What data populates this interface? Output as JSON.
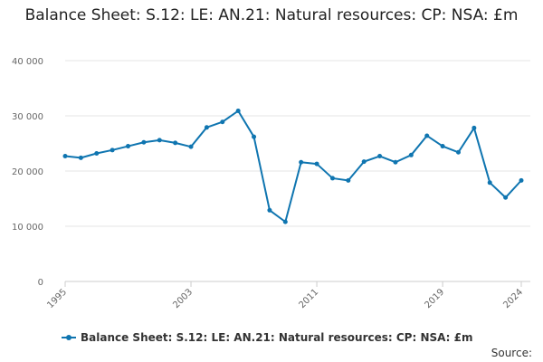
{
  "chart_data": {
    "type": "line",
    "title": "Balance Sheet: S.12: LE: AN.21: Natural resources: CP: NSA: £m",
    "x": [
      1995,
      1996,
      1997,
      1998,
      1999,
      2000,
      2001,
      2002,
      2003,
      2004,
      2005,
      2006,
      2007,
      2008,
      2009,
      2010,
      2011,
      2012,
      2013,
      2014,
      2015,
      2016,
      2017,
      2018,
      2019,
      2020,
      2021,
      2022,
      2023,
      2024
    ],
    "series": [
      {
        "name": "Balance Sheet: S.12: LE: AN.21: Natural resources: CP: NSA: £m",
        "values": [
          22700,
          22400,
          23200,
          23800,
          24500,
          25200,
          25600,
          25100,
          24400,
          27900,
          28900,
          30900,
          26200,
          12900,
          10800,
          21600,
          21300,
          18700,
          18300,
          21700,
          22700,
          21600,
          22900,
          26400,
          24500,
          23400,
          27800,
          17900,
          15200,
          18300
        ]
      }
    ],
    "y_ticks": [
      "0",
      "10 000",
      "20 000",
      "30 000",
      "40 000"
    ],
    "x_ticks": [
      "1995",
      "2003",
      "2011",
      "2019",
      "2024"
    ],
    "ylim": [
      0,
      40000
    ],
    "xlim": [
      1995,
      2024
    ],
    "grid": "horizontal",
    "legend_position": "bottom",
    "line_color": "#0f75b0",
    "source_label": "Source:"
  }
}
